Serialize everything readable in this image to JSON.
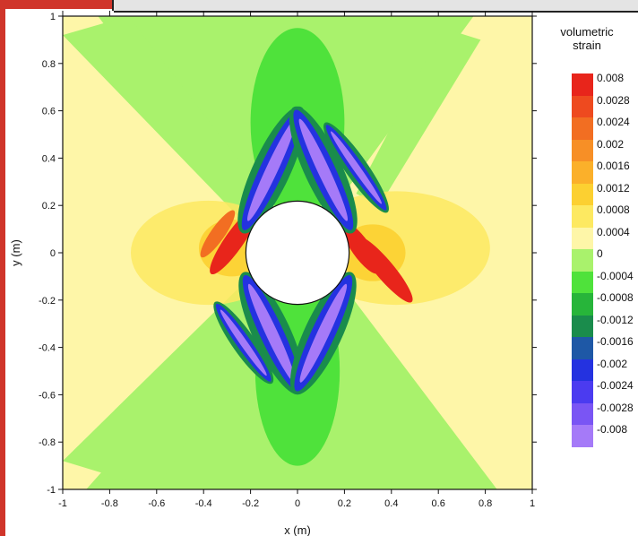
{
  "chart_data": {
    "type": "heatmap",
    "title": "",
    "xlabel": "x (m)",
    "ylabel": "y (m)",
    "xlim": [
      -1,
      1
    ],
    "ylim": [
      -1,
      1
    ],
    "x_ticks": [
      "-1",
      "-0.8",
      "-0.6",
      "-0.4",
      "-0.2",
      "0",
      "0.2",
      "0.4",
      "0.6",
      "0.8",
      "1"
    ],
    "y_ticks": [
      "1",
      "0.8",
      "0.6",
      "0.4",
      "0.2",
      "0",
      "-0.2",
      "-0.4",
      "-0.6",
      "-0.8",
      "-1"
    ],
    "hole": {
      "center": [
        0,
        0
      ],
      "radius": 0.22
    },
    "legend": {
      "title_line1": "volumetric",
      "title_line2": "strain",
      "placement": "right",
      "levels": [
        {
          "label": "0.008",
          "color": "#e8251b"
        },
        {
          "label": "0.0028",
          "color": "#ee4a1f"
        },
        {
          "label": "0.0024",
          "color": "#f26e22"
        },
        {
          "label": "0.002",
          "color": "#f78f26"
        },
        {
          "label": "0.0016",
          "color": "#fbb02a"
        },
        {
          "label": "0.0012",
          "color": "#fcd031"
        },
        {
          "label": "0.0008",
          "color": "#fde961"
        },
        {
          "label": "0.0004",
          "color": "#fef6a8"
        },
        {
          "label": "0",
          "color": "#a9f26c"
        },
        {
          "label": "-0.0004",
          "color": "#4fe23b"
        },
        {
          "label": "-0.0008",
          "color": "#27b53a"
        },
        {
          "label": "-0.0012",
          "color": "#1a8c4c"
        },
        {
          "label": "-0.0016",
          "color": "#1e58a6"
        },
        {
          "label": "-0.002",
          "color": "#2432e0"
        },
        {
          "label": "-0.0024",
          "color": "#4b3bf0"
        },
        {
          "label": "-0.0028",
          "color": "#7a55f4"
        },
        {
          "label": "-0.008",
          "color": "#a57af8"
        }
      ]
    }
  }
}
